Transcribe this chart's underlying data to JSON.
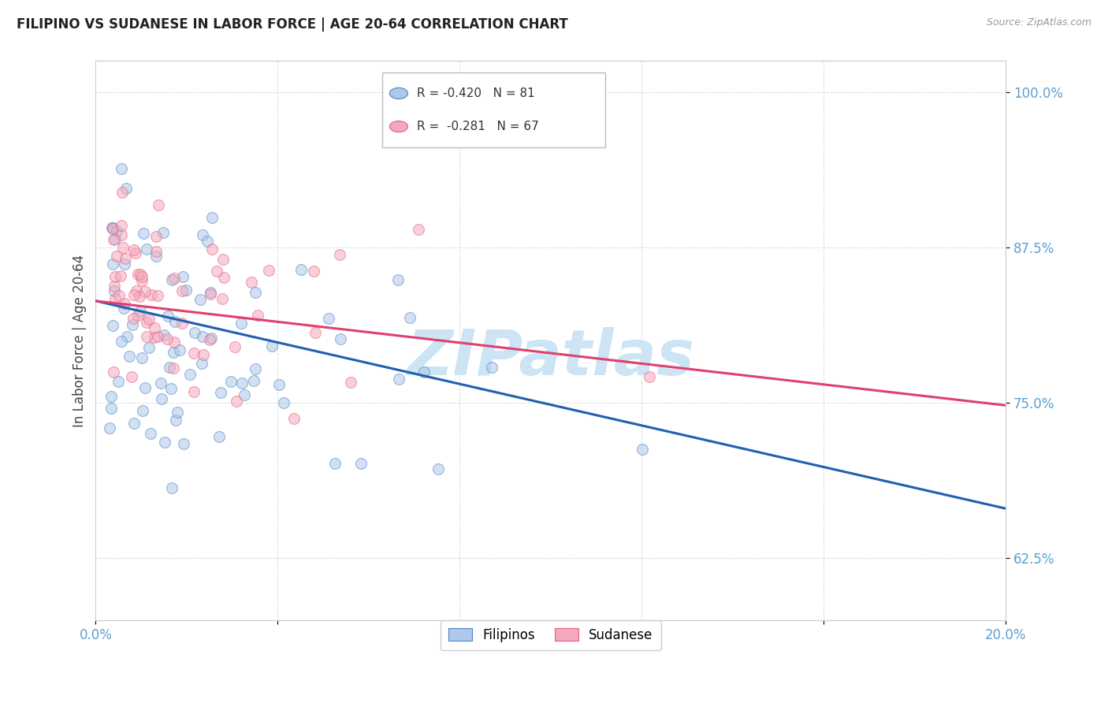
{
  "title": "FILIPINO VS SUDANESE IN LABOR FORCE | AGE 20-64 CORRELATION CHART",
  "source": "Source: ZipAtlas.com",
  "ylabel": "In Labor Force | Age 20-64",
  "xlim": [
    0.0,
    0.2
  ],
  "ylim": [
    0.575,
    1.025
  ],
  "yticks": [
    0.625,
    0.75,
    0.875,
    1.0
  ],
  "ytick_labels": [
    "62.5%",
    "75.0%",
    "87.5%",
    "100.0%"
  ],
  "xticks": [
    0.0,
    0.04,
    0.08,
    0.12,
    0.16,
    0.2
  ],
  "xtick_labels": [
    "0.0%",
    "",
    "",
    "",
    "",
    "20.0%"
  ],
  "filipino_fill_color": "#adc8e8",
  "sudanese_fill_color": "#f4a8bc",
  "filipino_edge_color": "#4a86c8",
  "sudanese_edge_color": "#e8607a",
  "filipino_line_color": "#2060b0",
  "sudanese_line_color": "#e04070",
  "axis_color": "#5aa0d0",
  "grid_color": "#d0d8e0",
  "background_color": "#ffffff",
  "watermark_text": "ZIPatlas",
  "watermark_color": "#cce4f4",
  "legend_R_filipino": "-0.420",
  "legend_N_filipino": "81",
  "legend_R_sudanese": "-0.281",
  "legend_N_sudanese": "67",
  "filipino_N": 81,
  "sudanese_N": 67,
  "filipino_seed": 12,
  "sudanese_seed": 77,
  "marker_size": 100,
  "marker_alpha": 0.55,
  "fil_line_y0": 0.832,
  "fil_line_y1": 0.665,
  "sud_line_y0": 0.832,
  "sud_line_y1": 0.748
}
